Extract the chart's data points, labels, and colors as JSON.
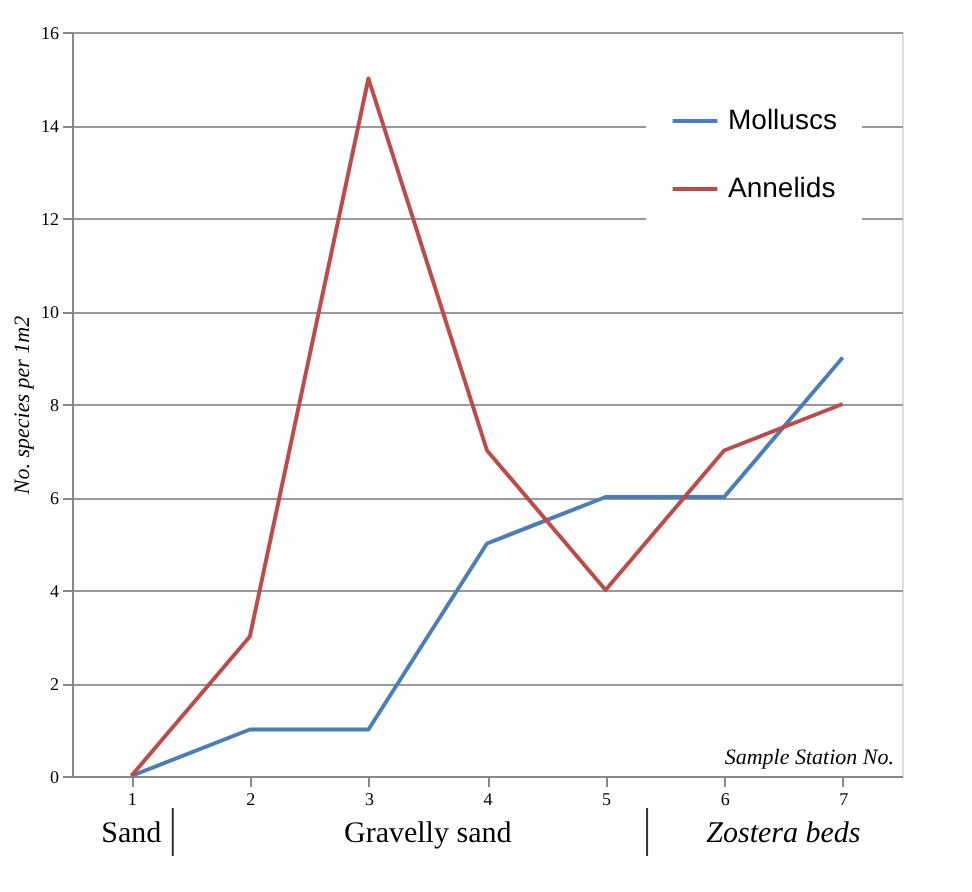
{
  "chart_data": {
    "type": "line",
    "xlabel": "Sample Station No.",
    "ylabel": "No. species per 1m2",
    "categories": [
      "1",
      "2",
      "3",
      "4",
      "5",
      "6",
      "7"
    ],
    "series": [
      {
        "name": "Molluscs",
        "color": "#4a7ebb",
        "values": [
          0,
          1,
          1,
          5,
          6,
          6,
          9
        ]
      },
      {
        "name": "Annelids",
        "color": "#be4b48",
        "values": [
          0,
          3,
          15,
          7,
          4,
          7,
          8
        ]
      }
    ],
    "ylim": [
      0,
      16
    ],
    "yticks": [
      0,
      2,
      4,
      6,
      8,
      10,
      12,
      14,
      16
    ],
    "grid": "y",
    "legend": "top right",
    "marker": "none",
    "line_style": "solid",
    "annotations": [
      "Sand",
      "Gravelly sand",
      "Zostera beds"
    ]
  }
}
